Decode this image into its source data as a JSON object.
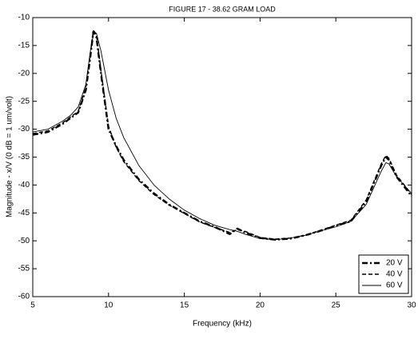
{
  "chart_data": {
    "type": "line",
    "title": "FIGURE 17 - 38.62 GRAM LOAD",
    "x_label": "Frequency (kHz)",
    "y_label": "Magnitude - x/V (0 dB = 1 um/volt)",
    "x": [
      5,
      6,
      7,
      7.5,
      8,
      8.5,
      8.8,
      9,
      9.2,
      9.5,
      10,
      10.5,
      11,
      12,
      13,
      14,
      15,
      16,
      17,
      18,
      18.5,
      19,
      20,
      21,
      22,
      23,
      24,
      25,
      26,
      27,
      28,
      28.3,
      28.5,
      29,
      30
    ],
    "series": [
      {
        "name": "20 V",
        "color": "#000000",
        "style": "dashdot",
        "width": 2.4,
        "values": [
          -31,
          -30.5,
          -29,
          -28,
          -27,
          -23,
          -17,
          -12.5,
          -13.5,
          -20,
          -30,
          -33,
          -35.5,
          -39,
          -41.5,
          -43.5,
          -45,
          -46.5,
          -47.5,
          -48.8,
          -47.8,
          -48.5,
          -49.5,
          -49.8,
          -49.6,
          -49,
          -48.2,
          -47.3,
          -46.5,
          -43,
          -36.5,
          -35,
          -35.5,
          -38.5,
          -42
        ]
      },
      {
        "name": "40 V",
        "color": "#000000",
        "style": "dashed",
        "width": 1.5,
        "values": [
          -30.8,
          -30.3,
          -28.8,
          -27.8,
          -26.8,
          -22.5,
          -16.5,
          -12.3,
          -13,
          -19.5,
          -29.5,
          -33.2,
          -35.8,
          -39.2,
          -41.7,
          -43.6,
          -45.1,
          -46.6,
          -47.6,
          -48.5,
          -48,
          -48.3,
          -49.4,
          -49.7,
          -49.5,
          -49,
          -48.1,
          -47.2,
          -46.3,
          -42.7,
          -36.2,
          -34.7,
          -35.2,
          -38.2,
          -41.7
        ]
      },
      {
        "name": "60 V",
        "color": "#000000",
        "style": "solid",
        "width": 0.9,
        "values": [
          -30.5,
          -30,
          -28.5,
          -27.5,
          -26,
          -22,
          -16,
          -13,
          -12.8,
          -16,
          -23,
          -28,
          -31.5,
          -36.5,
          -40,
          -42.5,
          -44.5,
          -46,
          -47.2,
          -48,
          -48.3,
          -48.8,
          -49.6,
          -49.8,
          -49.5,
          -49,
          -48.2,
          -47.5,
          -46.5,
          -43.5,
          -37.5,
          -36,
          -36.2,
          -38.5,
          -41.5
        ]
      }
    ],
    "xlim": [
      5,
      30
    ],
    "xticks": [
      5,
      10,
      15,
      20,
      25,
      30
    ],
    "ylim": [
      -60,
      -10
    ],
    "yticks": [
      -60,
      -55,
      -50,
      -45,
      -40,
      -35,
      -30,
      -25,
      -20,
      -15,
      -10
    ],
    "legend": "lower right"
  }
}
